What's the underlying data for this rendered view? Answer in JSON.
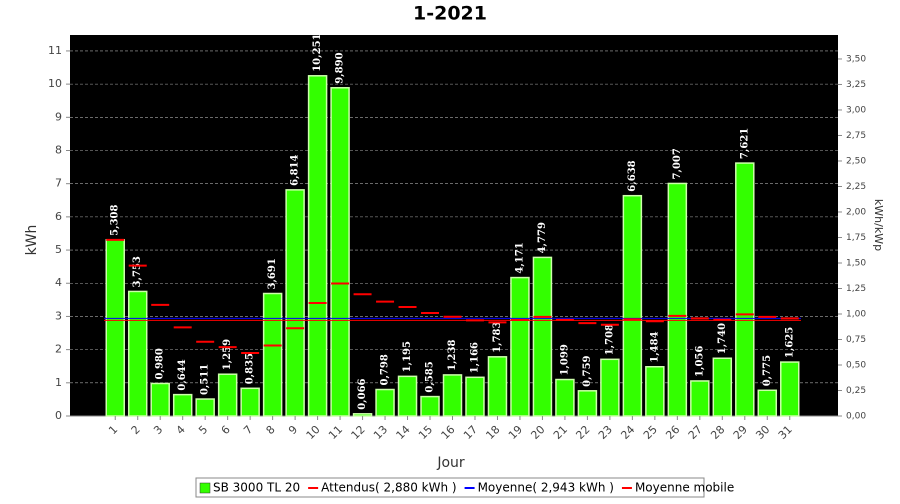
{
  "chart_data": {
    "type": "bar",
    "title": "1-2021",
    "x_label": "Jour",
    "y_label": "kWh",
    "y2_label": "kWh/kWp",
    "categories": [
      "1",
      "2",
      "3",
      "4",
      "5",
      "6",
      "7",
      "8",
      "9",
      "10",
      "11",
      "12",
      "13",
      "14",
      "15",
      "16",
      "17",
      "18",
      "19",
      "20",
      "21",
      "22",
      "23",
      "24",
      "25",
      "26",
      "27",
      "28",
      "29",
      "30",
      "31"
    ],
    "series": [
      {
        "name": "SB 3000 TL 20",
        "color": "#33ff00",
        "values": [
          5.308,
          3.753,
          0.98,
          0.644,
          0.511,
          1.259,
          0.835,
          3.691,
          6.814,
          10.251,
          9.89,
          0.066,
          0.798,
          1.195,
          0.585,
          1.238,
          1.166,
          1.783,
          4.171,
          4.779,
          1.099,
          0.759,
          1.708,
          6.638,
          1.484,
          7.007,
          1.056,
          1.74,
          7.621,
          0.775,
          1.625
        ],
        "value_labels": [
          "5,308",
          "3,753",
          "0,980",
          "0,644",
          "0,511",
          "1,259",
          "0,835",
          "3,691",
          "6,814",
          "10,251",
          "9,890",
          "0,066",
          "0,798",
          "1,195",
          "0,585",
          "1,238",
          "1,166",
          "1,783",
          "4,171",
          "4,779",
          "1,099",
          "0,759",
          "1,708",
          "6,638",
          "1,484",
          "7,007",
          "1,056",
          "1,740",
          "7,621",
          "0,775",
          "1,625"
        ]
      },
      {
        "name": "Attendus( 2,880 kWh )",
        "color": "#ff0000",
        "value": 2.88
      },
      {
        "name": "Moyenne( 2,943 kWh )",
        "color": "#0000ff",
        "value": 2.943
      },
      {
        "name": "Moyenne mobile",
        "color": "#ff0000",
        "values": [
          5.308,
          4.531,
          3.347,
          2.671,
          2.239,
          2.076,
          1.899,
          2.123,
          2.644,
          3.405,
          3.994,
          3.667,
          3.446,
          3.285,
          3.105,
          2.989,
          2.881,
          2.82,
          2.891,
          2.986,
          2.896,
          2.799,
          2.751,
          2.913,
          2.856,
          3.016,
          2.943,
          2.9,
          3.063,
          2.987,
          2.943
        ]
      }
    ],
    "ylim": [
      0,
      11.48
    ],
    "yticks": [
      0,
      1,
      2,
      3,
      4,
      5,
      6,
      7,
      8,
      9,
      10,
      11
    ],
    "y2lim": [
      0,
      3.735
    ],
    "y2ticks": [
      {
        "value": 0,
        "label": "0,00"
      },
      {
        "value": 0.25,
        "label": "0,25"
      },
      {
        "value": 0.5,
        "label": "0,50"
      },
      {
        "value": 0.75,
        "label": "0,75"
      },
      {
        "value": 1,
        "label": "1,00"
      },
      {
        "value": 1.25,
        "label": "1,25"
      },
      {
        "value": 1.5,
        "label": "1,50"
      },
      {
        "value": 1.75,
        "label": "1,75"
      },
      {
        "value": 2,
        "label": "2,00"
      },
      {
        "value": 2.25,
        "label": "2,25"
      },
      {
        "value": 2.5,
        "label": "2,50"
      },
      {
        "value": 2.75,
        "label": "2,75"
      },
      {
        "value": 3,
        "label": "3,00"
      },
      {
        "value": 3.25,
        "label": "3,25"
      },
      {
        "value": 3.5,
        "label": "3,50"
      }
    ],
    "grid": true
  }
}
